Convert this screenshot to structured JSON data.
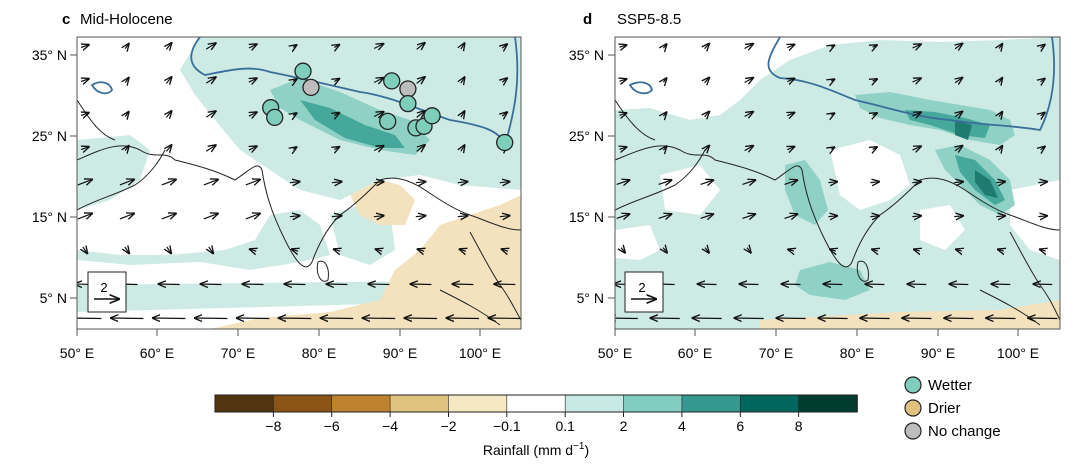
{
  "panels": [
    {
      "letter": "c",
      "title": "Mid-Holocene",
      "lat_ticks": [
        "35° N",
        "25° N",
        "15° N",
        "5° N"
      ],
      "lon_ticks": [
        "50° E",
        "60° E",
        "70° E",
        "80° E",
        "90° E",
        "100° E"
      ],
      "reference_vector": "2",
      "proxy_sites": [
        {
          "lon": 74.0,
          "lat": 28.5,
          "class": "wetter"
        },
        {
          "lon": 74.5,
          "lat": 27.3,
          "class": "wetter"
        },
        {
          "lon": 78.0,
          "lat": 33.0,
          "class": "wetter"
        },
        {
          "lon": 79.0,
          "lat": 31.0,
          "class": "no_change"
        },
        {
          "lon": 89.0,
          "lat": 31.8,
          "class": "wetter"
        },
        {
          "lon": 91.0,
          "lat": 30.8,
          "class": "no_change"
        },
        {
          "lon": 91.0,
          "lat": 29.0,
          "class": "wetter"
        },
        {
          "lon": 88.5,
          "lat": 26.8,
          "class": "wetter"
        },
        {
          "lon": 92.0,
          "lat": 26.0,
          "class": "wetter"
        },
        {
          "lon": 93.0,
          "lat": 26.2,
          "class": "wetter"
        },
        {
          "lon": 94.0,
          "lat": 27.5,
          "class": "wetter"
        },
        {
          "lon": 103.0,
          "lat": 24.2,
          "class": "wetter"
        }
      ]
    },
    {
      "letter": "d",
      "title": "SSP5-8.5",
      "lat_ticks": [
        "35° N",
        "25° N",
        "15° N",
        "5° N"
      ],
      "lon_ticks": [
        "50° E",
        "60° E",
        "70° E",
        "80° E",
        "90° E",
        "100° E"
      ],
      "reference_vector": "2",
      "proxy_sites": []
    }
  ],
  "colorbar": {
    "ticks": [
      "−8",
      "−6",
      "−4",
      "−2",
      "−0.1",
      "0.1",
      "2",
      "4",
      "6",
      "8"
    ],
    "label_main": "Rainfall (mm d",
    "label_sup": "−1",
    "label_close": ")",
    "colors": [
      "#523410",
      "#8a5417",
      "#bf812d",
      "#dfc27d",
      "#f6e8c3",
      "#ffffff",
      "#c7eae5",
      "#80cdc1",
      "#35978f",
      "#01665e",
      "#003c30"
    ]
  },
  "legend": {
    "items": [
      {
        "label": "Wetter",
        "color": "#7fcdbb"
      },
      {
        "label": "Drier",
        "color": "#dfc27d"
      },
      {
        "label": "No change",
        "color": "#bdbdbd"
      }
    ]
  },
  "colors": {
    "wet_light": "#cdebe4",
    "wet_mid": "#8fd1c4",
    "wet_dark": "#46a89a",
    "wet_darkest": "#1f7a6f",
    "dry_light": "#f3e2bd",
    "plateau_contour": "#3a6e9a",
    "coast": "#222222",
    "frame": "#555555"
  }
}
